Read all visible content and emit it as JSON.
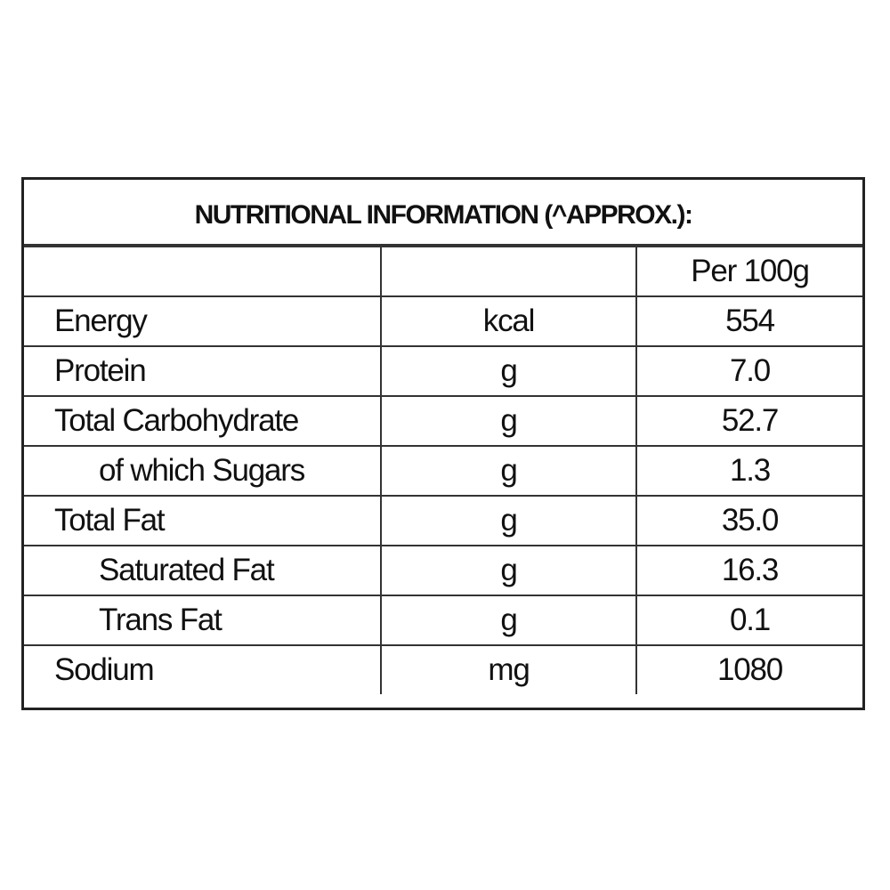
{
  "title": "NUTRITIONAL INFORMATION (^APPROX.):",
  "table": {
    "column_header": "Per 100g",
    "rows": [
      [
        "Energy",
        "kcal",
        "554"
      ],
      [
        "Protein",
        "g",
        "7.0"
      ],
      [
        "Total Carbohydrate",
        "g",
        "52.7"
      ],
      [
        "of which Sugars",
        "g",
        "1.3"
      ],
      [
        "Total Fat",
        "g",
        "35.0"
      ],
      [
        "Saturated Fat",
        "g",
        "16.3"
      ],
      [
        "Trans Fat",
        "g",
        "0.1"
      ],
      [
        "Sodium",
        "mg",
        "1080"
      ]
    ]
  }
}
